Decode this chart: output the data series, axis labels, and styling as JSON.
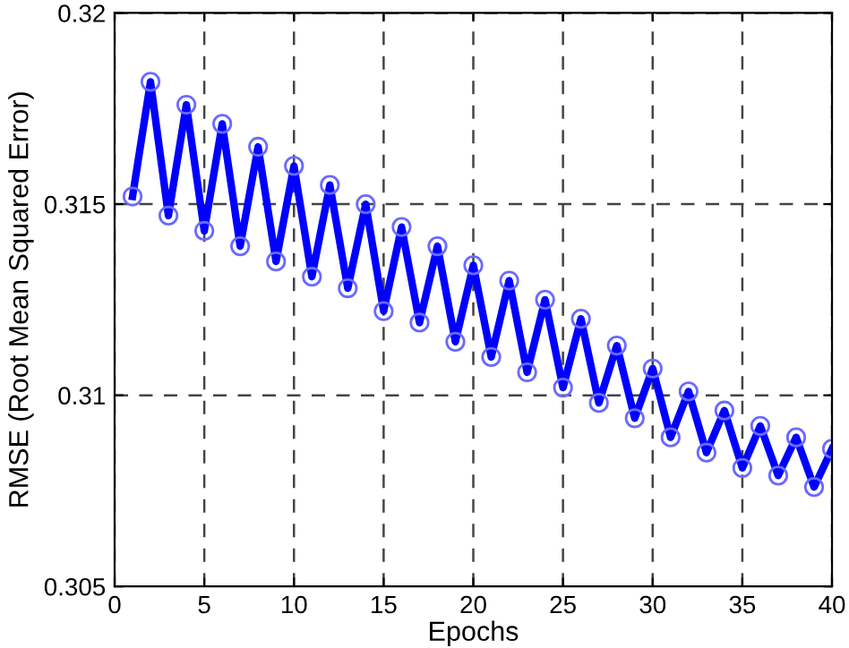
{
  "chart_data": {
    "type": "line",
    "xlabel": "Epochs",
    "ylabel": "RMSE (Root Mean Squared Error)",
    "x": [
      1,
      2,
      3,
      4,
      5,
      6,
      7,
      8,
      9,
      10,
      11,
      12,
      13,
      14,
      15,
      16,
      17,
      18,
      19,
      20,
      21,
      22,
      23,
      24,
      25,
      26,
      27,
      28,
      29,
      30,
      31,
      32,
      33,
      34,
      35,
      36,
      37,
      38,
      39,
      40
    ],
    "series": [
      {
        "color": "#0000ff",
        "values": [
          0.3152,
          0.3182,
          0.3147,
          0.3176,
          0.3143,
          0.3171,
          0.3139,
          0.3165,
          0.3135,
          0.316,
          0.3131,
          0.3155,
          0.3128,
          0.315,
          0.3122,
          0.3144,
          0.3119,
          0.3139,
          0.3114,
          0.3134,
          0.311,
          0.313,
          0.3106,
          0.3125,
          0.3102,
          0.312,
          0.3098,
          0.3113,
          0.3094,
          0.3107,
          0.3089,
          0.3101,
          0.3085,
          0.3096,
          0.3081,
          0.3092,
          0.3079,
          0.3089,
          0.3076,
          0.3086
        ]
      }
    ],
    "xlim": [
      0,
      40
    ],
    "ylim": [
      0.305,
      0.32
    ],
    "xticks": [
      0,
      5,
      10,
      15,
      20,
      25,
      30,
      35,
      40
    ],
    "yticks": [
      0.305,
      0.31,
      0.315,
      0.32
    ],
    "grid": true,
    "marker": "circle",
    "line_style": "solid"
  }
}
